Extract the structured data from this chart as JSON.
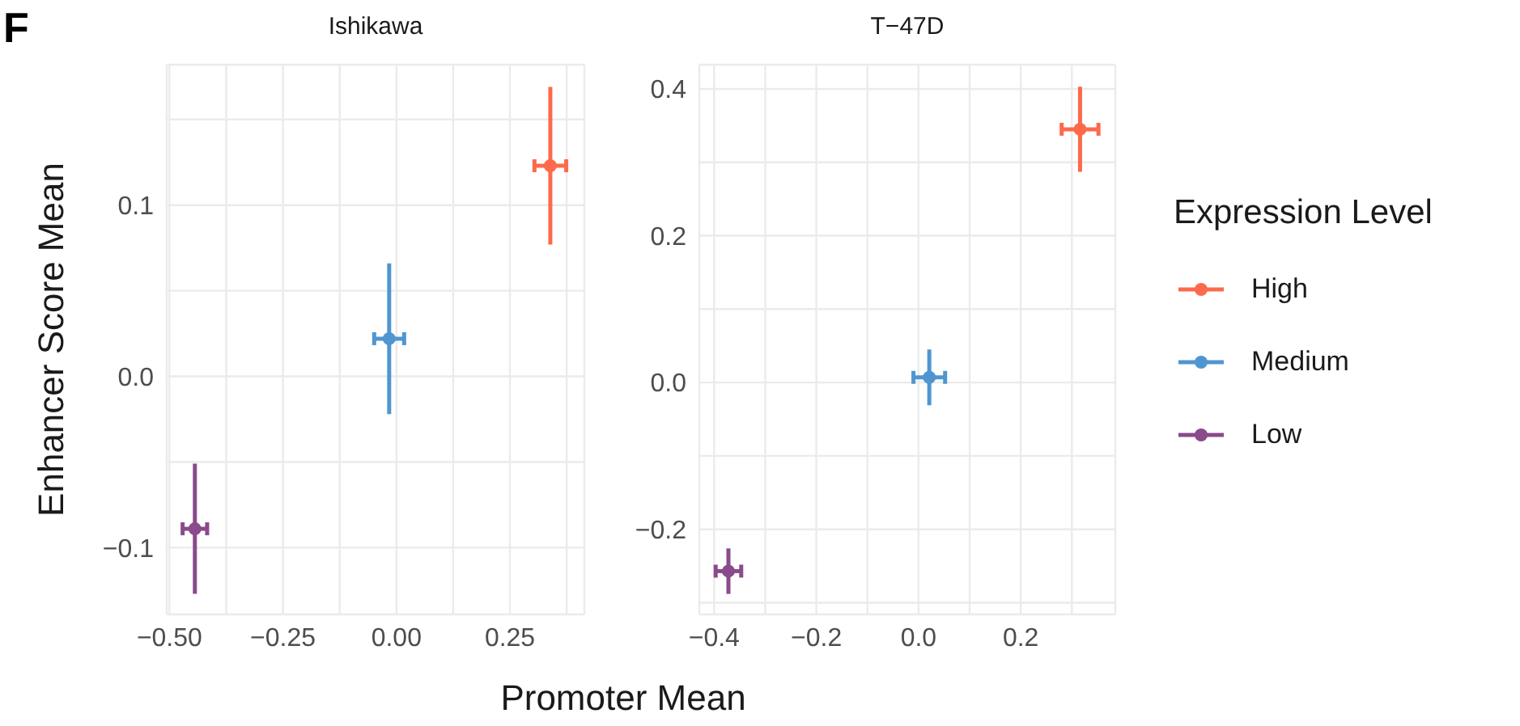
{
  "chart_data": [
    {
      "type": "scatter",
      "title": "Ishikawa",
      "xlabel": "Promoter Mean",
      "ylabel": "Enhancer Score Mean",
      "annotations": [
        "F"
      ],
      "xlim": [
        -0.506,
        0.414
      ],
      "ylim": [
        -0.139,
        0.182
      ],
      "xticks": [
        {
          "value": -0.5,
          "label": "−0.50"
        },
        {
          "value": -0.375,
          "label": null
        },
        {
          "value": -0.25,
          "label": "−0.25"
        },
        {
          "value": -0.125,
          "label": null
        },
        {
          "value": 0,
          "label": "0.00"
        },
        {
          "value": 0.125,
          "label": null
        },
        {
          "value": 0.25,
          "label": "0.25"
        },
        {
          "value": 0.375,
          "label": null
        }
      ],
      "yticks": [
        {
          "value": -0.1,
          "label": "−0.1"
        },
        {
          "value": -0.05,
          "label": null
        },
        {
          "value": 0,
          "label": "0.0"
        },
        {
          "value": 0.05,
          "label": null
        },
        {
          "value": 0.1,
          "label": "0.1"
        },
        {
          "value": 0.15,
          "label": null
        }
      ],
      "grid": true,
      "legend": "right",
      "legend_title": "Expression Level",
      "marker": "circle",
      "series": [
        {
          "name": "High",
          "color": "#fc6a4b",
          "x": [
            0.339
          ],
          "values": [
            0.123
          ],
          "errors": [
            0.046
          ],
          "xerrors": [
            0.035
          ]
        },
        {
          "name": "Medium",
          "color": "#4f96d1",
          "x": [
            -0.016
          ],
          "values": [
            0.022
          ],
          "errors": [
            0.044
          ],
          "xerrors": [
            0.033
          ]
        },
        {
          "name": "Low",
          "color": "#8a4a8b",
          "x": [
            -0.444
          ],
          "values": [
            -0.089
          ],
          "errors": [
            0.038
          ],
          "xerrors": [
            0.027
          ]
        }
      ]
    },
    {
      "type": "scatter",
      "title": "T−47D",
      "xlim": [
        -0.429,
        0.385
      ],
      "ylim": [
        -0.316,
        0.433
      ],
      "xticks": [
        {
          "value": -0.4,
          "label": "−0.4"
        },
        {
          "value": -0.3,
          "label": null
        },
        {
          "value": -0.2,
          "label": "−0.2"
        },
        {
          "value": -0.1,
          "label": null
        },
        {
          "value": 0,
          "label": "0.0"
        },
        {
          "value": 0.1,
          "label": null
        },
        {
          "value": 0.2,
          "label": "0.2"
        },
        {
          "value": 0.3,
          "label": null
        }
      ],
      "yticks": [
        {
          "value": -0.3,
          "label": null
        },
        {
          "value": -0.2,
          "label": "−0.2"
        },
        {
          "value": -0.1,
          "label": null
        },
        {
          "value": 0,
          "label": "0.0"
        },
        {
          "value": 0.1,
          "label": null
        },
        {
          "value": 0.2,
          "label": "0.2"
        },
        {
          "value": 0.3,
          "label": null
        },
        {
          "value": 0.4,
          "label": "0.4"
        }
      ],
      "grid": true,
      "marker": "circle",
      "series": [
        {
          "color": "#fc6a4b",
          "x": [
            0.316
          ],
          "values": [
            0.345
          ],
          "errors": [
            0.058
          ],
          "xerrors": [
            0.036
          ]
        },
        {
          "color": "#4f96d1",
          "x": [
            0.021
          ],
          "values": [
            0.007
          ],
          "errors": [
            0.038
          ],
          "xerrors": [
            0.031
          ]
        },
        {
          "color": "#8a4a8b",
          "x": [
            -0.372
          ],
          "values": [
            -0.257
          ],
          "errors": [
            0.031
          ],
          "xerrors": [
            0.025
          ]
        }
      ]
    }
  ]
}
